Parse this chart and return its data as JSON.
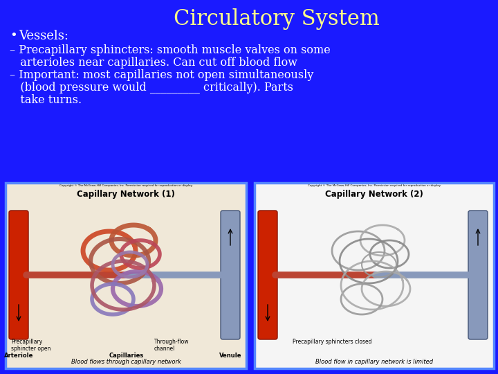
{
  "background_color": "#1a1aff",
  "title": "Circulatory System",
  "title_color": "#ffff88",
  "title_fontsize": 22,
  "title_fontstyle": "normal",
  "title_fontfamily": "serif",
  "bullet_color": "#ffffff",
  "bullet_fontsize": 13,
  "bullet_fontfamily": "serif",
  "sub_fontsize": 11.5,
  "bullet_text": "Vessels:",
  "sub1_line1": "– Precapillary sphincters: smooth muscle valves on some",
  "sub1_line2": "   arterioles near capillaries. Can cut off blood flow",
  "sub2_line1": "– Important: most capillaries not open simultaneously",
  "sub2_line2": "   (blood pressure would _________ critically). Parts",
  "sub2_line3": "   take turns.",
  "img1_bg": "#f0e8d8",
  "img2_bg": "#f5f5f5",
  "img_border_color": "#5588ff",
  "artery_color": "#cc2200",
  "vein_color": "#8899bb",
  "img1_title": "Capillary Network (1)",
  "img2_title": "Capillary Network (2)",
  "img1_label_bottom": "Blood flows through capillary network",
  "img2_label_bottom": "Blood flow in capillary network is limited",
  "copyright": "Copyright © The McGraw-Hill Companies, Inc. Permission required for reproduction or display."
}
